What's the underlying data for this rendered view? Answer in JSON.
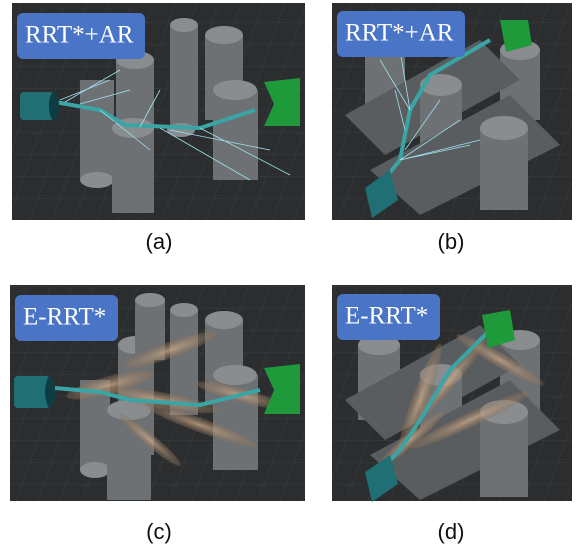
{
  "panels": [
    {
      "label": "RRT*+AR",
      "caption": "(a)"
    },
    {
      "label": "RRT*+AR",
      "caption": "(b)"
    },
    {
      "label": "E-RRT*",
      "caption": "(c)"
    },
    {
      "label": "E-RRT*",
      "caption": "(d)"
    }
  ]
}
